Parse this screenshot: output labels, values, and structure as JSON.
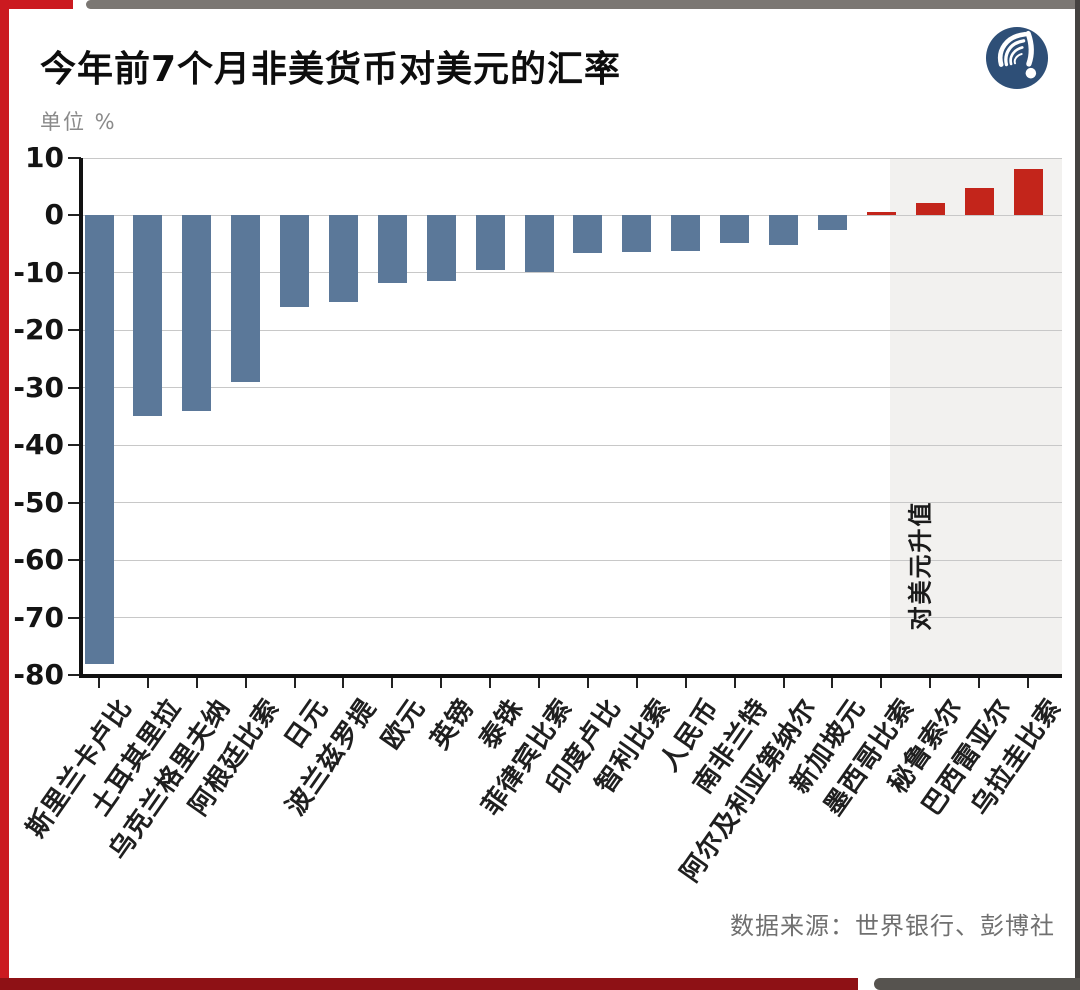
{
  "header": {
    "title": "今年前7个月非美货币对美元的汇率",
    "unit_label": "单位 %"
  },
  "footer": {
    "source": "数据来源：世界银行、彭博社"
  },
  "icons": {
    "logo": "wave-exclamation-brand-logo"
  },
  "colors": {
    "negative_bar": "#5b7899",
    "positive_bar": "#c3251b",
    "shade": "#f2f1ef",
    "grid": "#c8c8c8",
    "axis": "#111111",
    "frame_red": "#cb1a20",
    "frame_dark_red": "#8e1115",
    "frame_gray": "#7b7773",
    "frame_bottom_gray": "#56534f",
    "frame_dark_gray": "#454240",
    "logo_blue": "#2e4f77"
  },
  "chart_data": {
    "type": "bar",
    "title": "今年前7个月非美货币对美元的汇率",
    "unit": "%",
    "categories": [
      "斯里兰卡卢比",
      "土耳其里拉",
      "乌克兰格里夫纳",
      "阿根廷比索",
      "日元",
      "波兰兹罗提",
      "欧元",
      "英镑",
      "泰铢",
      "菲律宾比索",
      "印度卢比",
      "智利比索",
      "人民币",
      "南非兰特",
      "阿尔及利亚第纳尔",
      "新加坡元",
      "墨西哥比索",
      "秘鲁索尔",
      "巴西雷亚尔",
      "乌拉圭比索"
    ],
    "values": [
      -78,
      -35,
      -34,
      -29,
      -16,
      -15,
      -11.8,
      -11.4,
      -9.5,
      -9.8,
      -6.5,
      -6.3,
      -6.2,
      -4.8,
      -5.2,
      -2.5,
      0.6,
      2.1,
      4.7,
      8.1
    ],
    "ylim": [
      -80,
      10
    ],
    "yticks": [
      10,
      0,
      -10,
      -20,
      -30,
      -40,
      -50,
      -60,
      -70,
      -80
    ],
    "grid": "horizontal",
    "shaded_region_label": "对美元升值",
    "shaded_region_categories": [
      "秘鲁索尔",
      "巴西雷亚尔",
      "乌拉圭比索"
    ]
  }
}
